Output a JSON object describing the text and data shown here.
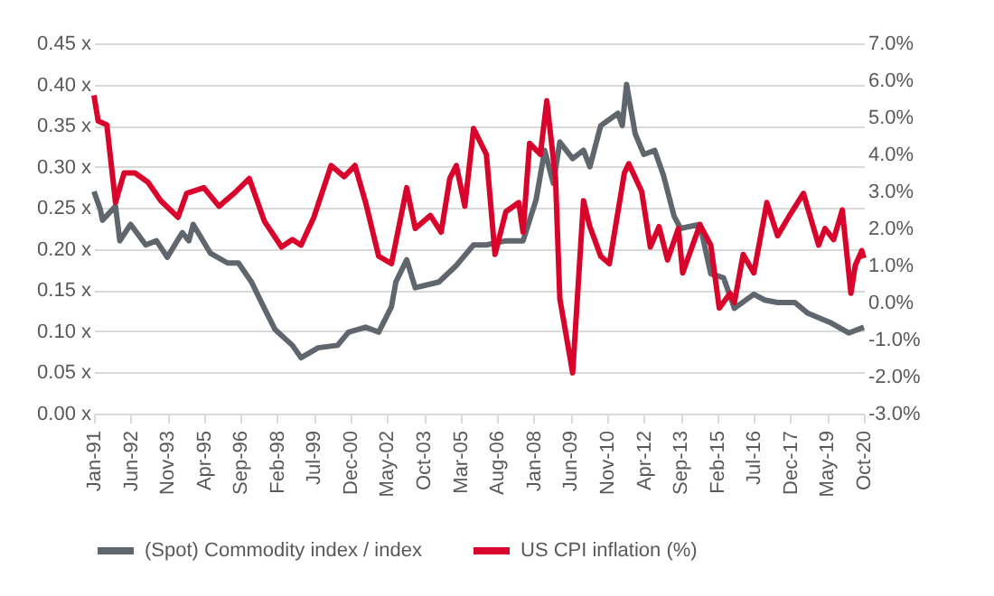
{
  "chart_data": {
    "type": "line",
    "xlim": [
      "1991-01",
      "2020-10"
    ],
    "xticks": [
      {
        "value": "1991-01",
        "label": "Jan-91"
      },
      {
        "value": "1992-06",
        "label": "Jun-92"
      },
      {
        "value": "1993-11",
        "label": "Nov-93"
      },
      {
        "value": "1995-04",
        "label": "Apr-95"
      },
      {
        "value": "1996-09",
        "label": "Sep-96"
      },
      {
        "value": "1998-02",
        "label": "Feb-98"
      },
      {
        "value": "1999-07",
        "label": "Jul-99"
      },
      {
        "value": "2000-12",
        "label": "Dec-00"
      },
      {
        "value": "2002-05",
        "label": "May-02"
      },
      {
        "value": "2003-10",
        "label": "Oct-03"
      },
      {
        "value": "2005-03",
        "label": "Mar-05"
      },
      {
        "value": "2006-08",
        "label": "Aug-06"
      },
      {
        "value": "2008-01",
        "label": "Jan-08"
      },
      {
        "value": "2009-06",
        "label": "Jun-09"
      },
      {
        "value": "2010-11",
        "label": "Nov-10"
      },
      {
        "value": "2012-04",
        "label": "Apr-12"
      },
      {
        "value": "2013-09",
        "label": "Sep-13"
      },
      {
        "value": "2015-02",
        "label": "Feb-15"
      },
      {
        "value": "2016-07",
        "label": "Jul-16"
      },
      {
        "value": "2017-12",
        "label": "Dec-17"
      },
      {
        "value": "2019-05",
        "label": "May-19"
      },
      {
        "value": "2020-10",
        "label": "Oct-20"
      }
    ],
    "ylim": [
      0,
      0.45
    ],
    "yticks": [
      {
        "value": 0,
        "label": "0.00 x"
      },
      {
        "value": 0.05,
        "label": "0.05 x"
      },
      {
        "value": 0.1,
        "label": "0.10 x"
      },
      {
        "value": 0.15,
        "label": "0.15 x"
      },
      {
        "value": 0.2,
        "label": "0.20 x"
      },
      {
        "value": 0.25,
        "label": "0.25 x"
      },
      {
        "value": 0.3,
        "label": "0.30 x"
      },
      {
        "value": 0.35,
        "label": "0.35 x"
      },
      {
        "value": 0.4,
        "label": "0.40 x"
      },
      {
        "value": 0.45,
        "label": "0.45 x"
      }
    ],
    "y2lim": [
      -3,
      7
    ],
    "y2ticks": [
      {
        "value": -3,
        "label": "-3.0%"
      },
      {
        "value": -2,
        "label": "-2.0%"
      },
      {
        "value": -1,
        "label": "-1.0%"
      },
      {
        "value": 0,
        "label": "0.0%"
      },
      {
        "value": 1,
        "label": "1.0%"
      },
      {
        "value": 2,
        "label": "2.0%"
      },
      {
        "value": 3,
        "label": "3.0%"
      },
      {
        "value": 4,
        "label": "4.0%"
      },
      {
        "value": 5,
        "label": "5.0%"
      },
      {
        "value": 6,
        "label": "6.0%"
      },
      {
        "value": 7,
        "label": "7.0%"
      }
    ],
    "grid": "y",
    "legend": "bottom",
    "series": [
      {
        "name": "(Spot) Commodity index / index",
        "color": "#5f666d",
        "x": [
          "1991-01",
          "1991-04",
          "1991-05",
          "1991-11",
          "1992-01",
          "1992-06",
          "1993-01",
          "1993-06",
          "1993-11",
          "1994-06",
          "1994-09",
          "1994-11",
          "1995-07",
          "1996-03",
          "1996-08",
          "1997-02",
          "1997-08",
          "1998-01",
          "1998-09",
          "1999-01",
          "1999-09",
          "2000-06",
          "2000-11",
          "2001-07",
          "2002-01",
          "2002-07",
          "2002-09",
          "2003-02",
          "2003-06",
          "2004-05",
          "2005-01",
          "2005-09",
          "2006-03",
          "2006-12",
          "2007-08",
          "2008-02",
          "2008-06",
          "2008-10",
          "2009-01",
          "2009-07",
          "2009-12",
          "2010-03",
          "2010-08",
          "2011-04",
          "2011-06",
          "2011-08",
          "2011-12",
          "2012-04",
          "2012-09",
          "2013-01",
          "2013-06",
          "2013-09",
          "2014-06",
          "2014-11",
          "2015-05",
          "2015-10",
          "2016-07",
          "2016-12",
          "2017-06",
          "2018-02",
          "2018-08",
          "2019-07",
          "2020-03",
          "2020-10"
        ],
        "values": [
          0.27,
          0.248,
          0.235,
          0.252,
          0.21,
          0.23,
          0.205,
          0.21,
          0.19,
          0.22,
          0.21,
          0.23,
          0.195,
          0.183,
          0.183,
          0.16,
          0.128,
          0.102,
          0.083,
          0.068,
          0.08,
          0.083,
          0.099,
          0.105,
          0.099,
          0.13,
          0.16,
          0.187,
          0.153,
          0.16,
          0.18,
          0.205,
          0.205,
          0.21,
          0.21,
          0.26,
          0.32,
          0.28,
          0.33,
          0.31,
          0.32,
          0.3,
          0.35,
          0.365,
          0.35,
          0.4,
          0.34,
          0.315,
          0.32,
          0.29,
          0.24,
          0.225,
          0.23,
          0.17,
          0.165,
          0.128,
          0.145,
          0.138,
          0.135,
          0.135,
          0.122,
          0.11,
          0.098,
          0.105
        ]
      },
      {
        "name": "US CPI inflation (%)",
        "color": "#d9042b",
        "axis": "y2",
        "x": [
          "1991-01",
          "1991-03",
          "1991-07",
          "1991-11",
          "1992-03",
          "1992-08",
          "1993-02",
          "1993-08",
          "1994-04",
          "1994-08",
          "1995-04",
          "1995-11",
          "1996-06",
          "1997-01",
          "1997-08",
          "1998-04",
          "1998-09",
          "1999-01",
          "1999-07",
          "2000-03",
          "2000-09",
          "2001-02",
          "2001-07",
          "2002-01",
          "2002-07",
          "2003-02",
          "2003-06",
          "2004-01",
          "2004-06",
          "2004-10",
          "2005-01",
          "2005-05",
          "2005-09",
          "2006-03",
          "2006-07",
          "2006-12",
          "2007-06",
          "2007-08",
          "2007-11",
          "2008-04",
          "2008-07",
          "2008-11",
          "2009-01",
          "2009-03",
          "2009-07",
          "2009-12",
          "2010-03",
          "2010-08",
          "2010-12",
          "2011-07",
          "2011-09",
          "2012-03",
          "2012-07",
          "2012-11",
          "2013-03",
          "2013-08",
          "2013-10",
          "2014-06",
          "2014-11",
          "2015-03",
          "2015-08",
          "2015-10",
          "2016-02",
          "2016-07",
          "2017-01",
          "2017-06",
          "2017-11",
          "2018-06",
          "2019-01",
          "2019-04",
          "2019-08",
          "2019-12",
          "2020-04",
          "2020-06",
          "2020-09",
          "2020-10"
        ],
        "values": [
          5.6,
          4.9,
          4.8,
          2.7,
          3.5,
          3.5,
          3.25,
          2.75,
          2.3,
          2.95,
          3.1,
          2.6,
          2.95,
          3.35,
          2.2,
          1.5,
          1.7,
          1.55,
          2.3,
          3.7,
          3.4,
          3.7,
          2.7,
          1.25,
          1.05,
          3.1,
          2.0,
          2.35,
          1.9,
          3.35,
          3.7,
          2.6,
          4.7,
          4.0,
          1.3,
          2.45,
          2.7,
          1.9,
          4.3,
          4.0,
          5.45,
          3.35,
          0.1,
          -0.55,
          -1.9,
          2.75,
          2.05,
          1.25,
          1.05,
          3.5,
          3.75,
          3.0,
          1.5,
          2.05,
          1.15,
          2.0,
          0.8,
          2.1,
          1.55,
          -0.15,
          0.25,
          0.0,
          1.3,
          0.8,
          2.7,
          1.8,
          2.3,
          2.95,
          1.55,
          2.0,
          1.7,
          2.5,
          0.25,
          1.0,
          1.4,
          1.2
        ]
      }
    ]
  }
}
